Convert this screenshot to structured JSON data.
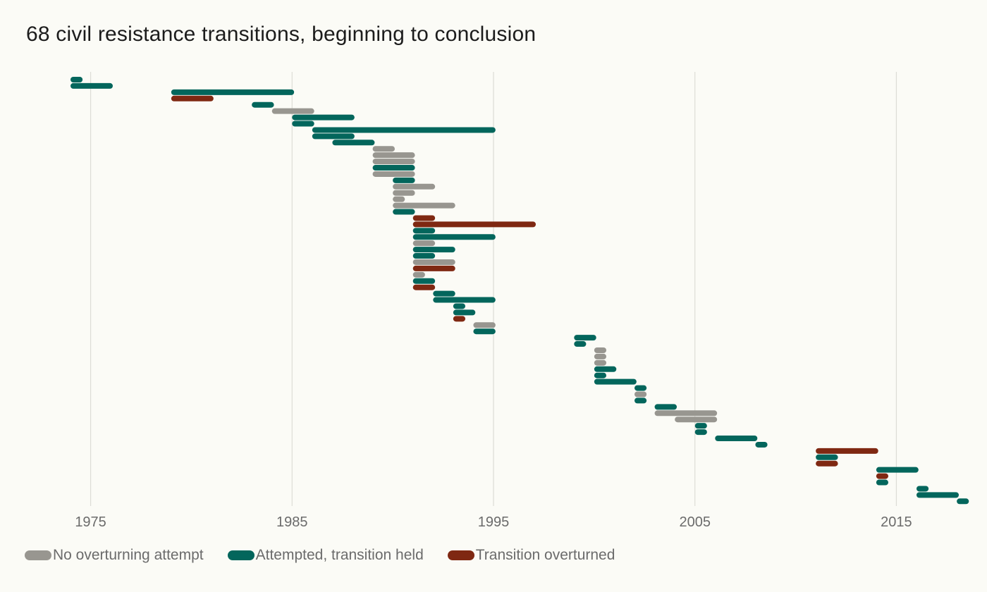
{
  "chart_data": {
    "type": "bar",
    "orientation": "horizontal-range",
    "title": "68 civil resistance transitions, beginning to conclusion",
    "xlabel": "",
    "ylabel": "",
    "xlim": [
      1970.5,
      2019.5
    ],
    "xticks": [
      1975,
      1985,
      1995,
      2005,
      2015
    ],
    "grid": "vertical",
    "legend_position": "bottom-left",
    "categories": [
      {
        "key": "none",
        "name": "No overturning attempt",
        "color": "#989690"
      },
      {
        "key": "held",
        "name": "Attempted, transition held",
        "color": "#03665c"
      },
      {
        "key": "overturned",
        "name": "Transition overturned",
        "color": "#7f2812"
      }
    ],
    "transitions": [
      {
        "start": 1974.0,
        "end": 1974.6,
        "category": "held"
      },
      {
        "start": 1974.0,
        "end": 1976.1,
        "category": "held"
      },
      {
        "start": 1979.0,
        "end": 1985.1,
        "category": "held"
      },
      {
        "start": 1979.0,
        "end": 1981.1,
        "category": "overturned"
      },
      {
        "start": 1983.0,
        "end": 1984.1,
        "category": "held"
      },
      {
        "start": 1984.0,
        "end": 1986.1,
        "category": "none"
      },
      {
        "start": 1985.0,
        "end": 1988.1,
        "category": "held"
      },
      {
        "start": 1985.0,
        "end": 1986.1,
        "category": "held"
      },
      {
        "start": 1986.0,
        "end": 1995.1,
        "category": "held"
      },
      {
        "start": 1986.0,
        "end": 1988.1,
        "category": "held"
      },
      {
        "start": 1987.0,
        "end": 1989.1,
        "category": "held"
      },
      {
        "start": 1989.0,
        "end": 1990.1,
        "category": "none"
      },
      {
        "start": 1989.0,
        "end": 1991.1,
        "category": "none"
      },
      {
        "start": 1989.0,
        "end": 1991.1,
        "category": "none"
      },
      {
        "start": 1989.0,
        "end": 1991.1,
        "category": "held"
      },
      {
        "start": 1989.0,
        "end": 1991.1,
        "category": "none"
      },
      {
        "start": 1990.0,
        "end": 1991.1,
        "category": "held"
      },
      {
        "start": 1990.0,
        "end": 1992.1,
        "category": "none"
      },
      {
        "start": 1990.0,
        "end": 1991.1,
        "category": "none"
      },
      {
        "start": 1990.0,
        "end": 1990.6,
        "category": "none"
      },
      {
        "start": 1990.0,
        "end": 1993.1,
        "category": "none"
      },
      {
        "start": 1990.0,
        "end": 1991.1,
        "category": "held"
      },
      {
        "start": 1991.0,
        "end": 1992.1,
        "category": "overturned"
      },
      {
        "start": 1991.0,
        "end": 1997.1,
        "category": "overturned"
      },
      {
        "start": 1991.0,
        "end": 1992.1,
        "category": "held"
      },
      {
        "start": 1991.0,
        "end": 1995.1,
        "category": "held"
      },
      {
        "start": 1991.0,
        "end": 1992.1,
        "category": "none"
      },
      {
        "start": 1991.0,
        "end": 1993.1,
        "category": "held"
      },
      {
        "start": 1991.0,
        "end": 1992.1,
        "category": "held"
      },
      {
        "start": 1991.0,
        "end": 1993.1,
        "category": "none"
      },
      {
        "start": 1991.0,
        "end": 1993.1,
        "category": "overturned"
      },
      {
        "start": 1991.0,
        "end": 1991.6,
        "category": "none"
      },
      {
        "start": 1991.0,
        "end": 1992.1,
        "category": "held"
      },
      {
        "start": 1991.0,
        "end": 1992.1,
        "category": "overturned"
      },
      {
        "start": 1992.0,
        "end": 1993.1,
        "category": "held"
      },
      {
        "start": 1992.0,
        "end": 1995.1,
        "category": "held"
      },
      {
        "start": 1993.0,
        "end": 1993.6,
        "category": "held"
      },
      {
        "start": 1993.0,
        "end": 1994.1,
        "category": "held"
      },
      {
        "start": 1993.0,
        "end": 1993.6,
        "category": "overturned"
      },
      {
        "start": 1994.0,
        "end": 1995.1,
        "category": "none"
      },
      {
        "start": 1994.0,
        "end": 1995.1,
        "category": "held"
      },
      {
        "start": 1999.0,
        "end": 2000.1,
        "category": "held"
      },
      {
        "start": 1999.0,
        "end": 1999.6,
        "category": "held"
      },
      {
        "start": 2000.0,
        "end": 2000.6,
        "category": "none"
      },
      {
        "start": 2000.0,
        "end": 2000.6,
        "category": "none"
      },
      {
        "start": 2000.0,
        "end": 2000.6,
        "category": "none"
      },
      {
        "start": 2000.0,
        "end": 2001.1,
        "category": "held"
      },
      {
        "start": 2000.0,
        "end": 2000.6,
        "category": "held"
      },
      {
        "start": 2000.0,
        "end": 2002.1,
        "category": "held"
      },
      {
        "start": 2002.0,
        "end": 2002.6,
        "category": "held"
      },
      {
        "start": 2002.0,
        "end": 2002.6,
        "category": "none"
      },
      {
        "start": 2002.0,
        "end": 2002.6,
        "category": "held"
      },
      {
        "start": 2003.0,
        "end": 2004.1,
        "category": "held"
      },
      {
        "start": 2003.0,
        "end": 2006.1,
        "category": "none"
      },
      {
        "start": 2004.0,
        "end": 2006.1,
        "category": "none"
      },
      {
        "start": 2005.0,
        "end": 2005.6,
        "category": "held"
      },
      {
        "start": 2005.0,
        "end": 2005.6,
        "category": "held"
      },
      {
        "start": 2006.0,
        "end": 2008.1,
        "category": "held"
      },
      {
        "start": 2008.0,
        "end": 2008.6,
        "category": "held"
      },
      {
        "start": 2011.0,
        "end": 2014.1,
        "category": "overturned"
      },
      {
        "start": 2011.0,
        "end": 2012.1,
        "category": "held"
      },
      {
        "start": 2011.0,
        "end": 2012.1,
        "category": "overturned"
      },
      {
        "start": 2014.0,
        "end": 2016.1,
        "category": "held"
      },
      {
        "start": 2014.0,
        "end": 2014.6,
        "category": "overturned"
      },
      {
        "start": 2014.0,
        "end": 2014.6,
        "category": "held"
      },
      {
        "start": 2016.0,
        "end": 2016.6,
        "category": "held"
      },
      {
        "start": 2016.0,
        "end": 2018.1,
        "category": "held"
      },
      {
        "start": 2018.0,
        "end": 2018.6,
        "category": "held"
      }
    ]
  }
}
